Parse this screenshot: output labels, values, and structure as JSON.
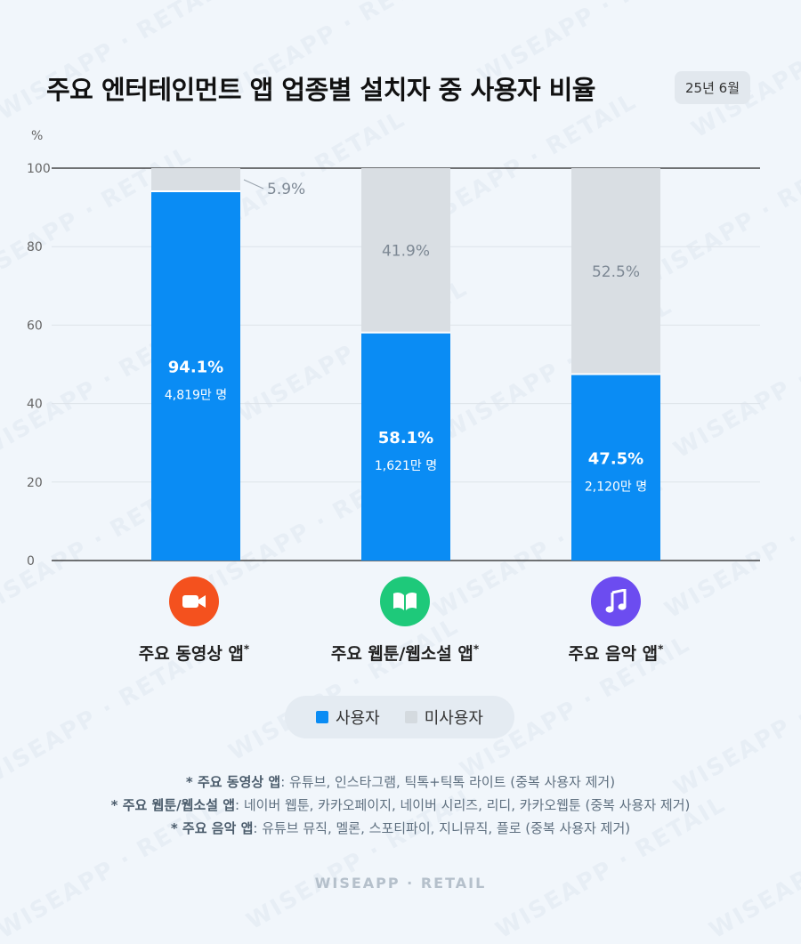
{
  "title": "주요 엔터테인먼트 앱 업종별 설치자 중 사용자 비율",
  "date_badge": "25년 6월",
  "y_unit": "%",
  "legend": {
    "used": "사용자",
    "unused": "미사용자"
  },
  "colors": {
    "used": "#0a8cf4",
    "unused": "#d9dee3",
    "video_icon": "#f4511e",
    "webtoon_icon": "#1ec97a",
    "music_icon": "#6c4cf0"
  },
  "categories": [
    {
      "label": "주요 동영상 앱",
      "icon": "video-camera-icon"
    },
    {
      "label": "주요 웹툰/웹소설 앱",
      "icon": "open-book-icon"
    },
    {
      "label": "주요 음악 앱",
      "icon": "music-note-icon"
    }
  ],
  "notes": [
    {
      "head": "* 주요 동영상 앱",
      "body": ": 유튜브, 인스타그램, 틱톡+틱톡 라이트 (중복 사용자 제거)"
    },
    {
      "head": "* 주요 웹툰/웹소설 앱",
      "body": ": 네이버 웹툰, 카카오페이지, 네이버 시리즈, 리디, 카카오웹툰 (중복 사용자 제거)"
    },
    {
      "head": "* 주요 음악 앱",
      "body": ": 유튜브 뮤직, 멜론, 스포티파이, 지니뮤직, 플로 (중복 사용자 제거)"
    }
  ],
  "footer": "WISEAPP · RETAIL",
  "watermark": "WISEAPP · RETAIL",
  "chart_data": {
    "type": "bar",
    "stacked": true,
    "categories": [
      "주요 동영상 앱",
      "주요 웹툰/웹소설 앱",
      "주요 음악 앱"
    ],
    "series": [
      {
        "name": "사용자",
        "values": [
          94.1,
          58.1,
          47.5
        ],
        "labels": [
          "94.1%",
          "58.1%",
          "47.5%"
        ],
        "sublabels": [
          "4,819만 명",
          "1,621만 명",
          "2,120만 명"
        ]
      },
      {
        "name": "미사용자",
        "values": [
          5.9,
          41.9,
          52.5
        ],
        "labels": [
          "5.9%",
          "41.9%",
          "52.5%"
        ]
      }
    ],
    "ylim": [
      0,
      100
    ],
    "yticks": [
      0,
      20,
      40,
      60,
      80,
      100
    ],
    "ylabel": "%",
    "grid": true
  }
}
